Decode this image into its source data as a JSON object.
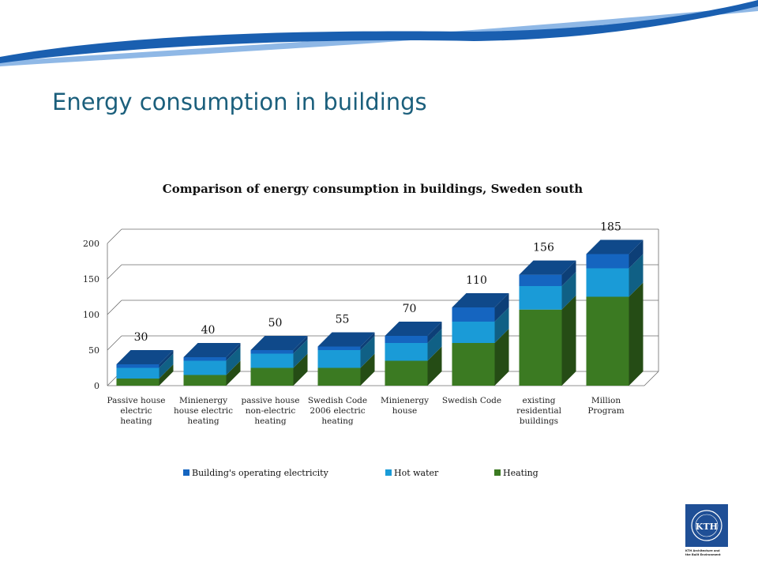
{
  "slide": {
    "title": "Energy consumption in buildings"
  },
  "colors": {
    "title": "#1b5f7c",
    "swoosh_dark": "#1a5fb0",
    "swoosh_light": "#4f93d8",
    "operating_electricity": "#1565c0",
    "hot_water": "#1a9bd7",
    "heating": "#3b7a22",
    "logo_blue": "#1f4f96"
  },
  "chart_data": {
    "type": "bar",
    "stacked": true,
    "three_d": true,
    "title": "Comparison of energy consumption in buildings, Sweden south",
    "categories": [
      [
        "Passive house",
        "electric",
        "heating"
      ],
      [
        "Minienergy",
        "house electric",
        "heating"
      ],
      [
        "passive house",
        "non-electric",
        "heating"
      ],
      [
        "Swedish Code",
        "2006 electric",
        "heating"
      ],
      [
        "Minienergy",
        "house"
      ],
      [
        "Swedish Code"
      ],
      [
        "existing",
        "residential",
        "buildings"
      ],
      [
        "Million",
        "Program"
      ]
    ],
    "series": [
      {
        "name": "Heating",
        "color": "#3b7a22",
        "values": [
          10,
          15,
          25,
          25,
          35,
          60,
          107,
          125
        ]
      },
      {
        "name": "Hot water",
        "color": "#1a9bd7",
        "values": [
          15,
          20,
          20,
          25,
          25,
          30,
          33,
          40
        ]
      },
      {
        "name": "Building's operating electricity",
        "color": "#1565c0",
        "values": [
          5,
          5,
          5,
          5,
          10,
          20,
          16,
          20
        ]
      }
    ],
    "totals": [
      "30",
      "40",
      "50",
      "55",
      "70",
      "110",
      "156",
      "185"
    ],
    "y_ticks": [
      "0",
      "50",
      "100",
      "150",
      "200"
    ],
    "ylim": [
      0,
      200
    ],
    "grid": true,
    "legend": {
      "placement": "bottom",
      "items": [
        {
          "label": "Building's operating electricity",
          "color": "#1565c0"
        },
        {
          "label": "Hot water",
          "color": "#1a9bd7"
        },
        {
          "label": "Heating",
          "color": "#3b7a22"
        }
      ]
    }
  },
  "logo": {
    "text": "KTH",
    "caption_line1": "KTH Architecture and",
    "caption_line2": "the Built Environment"
  }
}
